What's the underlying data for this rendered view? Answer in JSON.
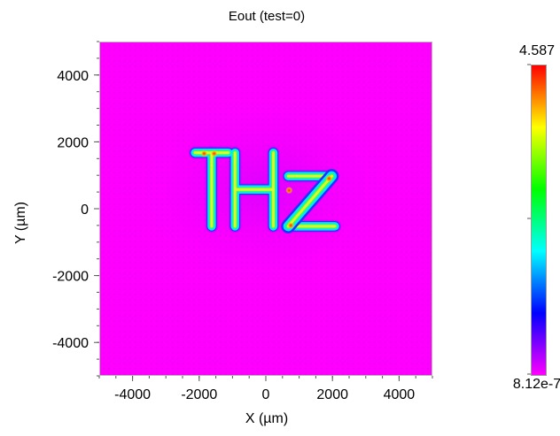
{
  "chart_data": {
    "type": "heatmap",
    "title": "Eout (test=0)",
    "xlabel": "X (µm)",
    "ylabel": "Y (µm)",
    "xlim": [
      -5000,
      5000
    ],
    "ylim": [
      -5000,
      5000
    ],
    "x_ticks": [
      -4000,
      -2000,
      0,
      2000,
      4000
    ],
    "y_ticks": [
      4000,
      2000,
      0,
      -2000,
      -4000
    ],
    "x_tick_labels": [
      "-4000",
      "-2000",
      "0",
      "2000",
      "4000"
    ],
    "y_tick_labels": [
      "4000",
      "2000",
      "0",
      "-2000",
      "-4000"
    ],
    "colorbar": {
      "max_label": "4.587",
      "min_label": "8.12e-7",
      "max": 4.587,
      "min": 8.12e-07,
      "colormap": [
        "#ff00ff",
        "#0000ff",
        "#00ffff",
        "#00ff00",
        "#ffff00",
        "#ff0000"
      ]
    },
    "background_value_color": "#ff00ff",
    "image_text": "THz",
    "letter_strokes": [
      {
        "letter": "T",
        "part": "top-bar",
        "x": [
          -2250,
          -1000
        ],
        "y": [
          1550,
          1800
        ]
      },
      {
        "letter": "T",
        "part": "stem",
        "x": [
          -1750,
          -1500
        ],
        "y": [
          -650,
          1800
        ]
      },
      {
        "letter": "H",
        "part": "left",
        "x": [
          -1050,
          -800
        ],
        "y": [
          -650,
          1800
        ]
      },
      {
        "letter": "H",
        "part": "right",
        "x": [
          100,
          350
        ],
        "y": [
          -650,
          1800
        ]
      },
      {
        "letter": "H",
        "part": "cross",
        "x": [
          -1050,
          350
        ],
        "y": [
          450,
          700
        ]
      },
      {
        "letter": "z",
        "part": "top",
        "x": [
          550,
          2100
        ],
        "y": [
          850,
          1100
        ]
      },
      {
        "letter": "z",
        "part": "bottom",
        "x": [
          550,
          2200
        ],
        "y": [
          -650,
          -400
        ]
      }
    ],
    "hotspots": [
      {
        "x": -1850,
        "y": 1650,
        "value": "high"
      },
      {
        "x": -1550,
        "y": 1650,
        "value": "high"
      },
      {
        "x": 700,
        "y": 550,
        "value": "high"
      },
      {
        "x": 1900,
        "y": 900,
        "value": "high"
      },
      {
        "x": 750,
        "y": -500,
        "value": "high"
      }
    ]
  }
}
